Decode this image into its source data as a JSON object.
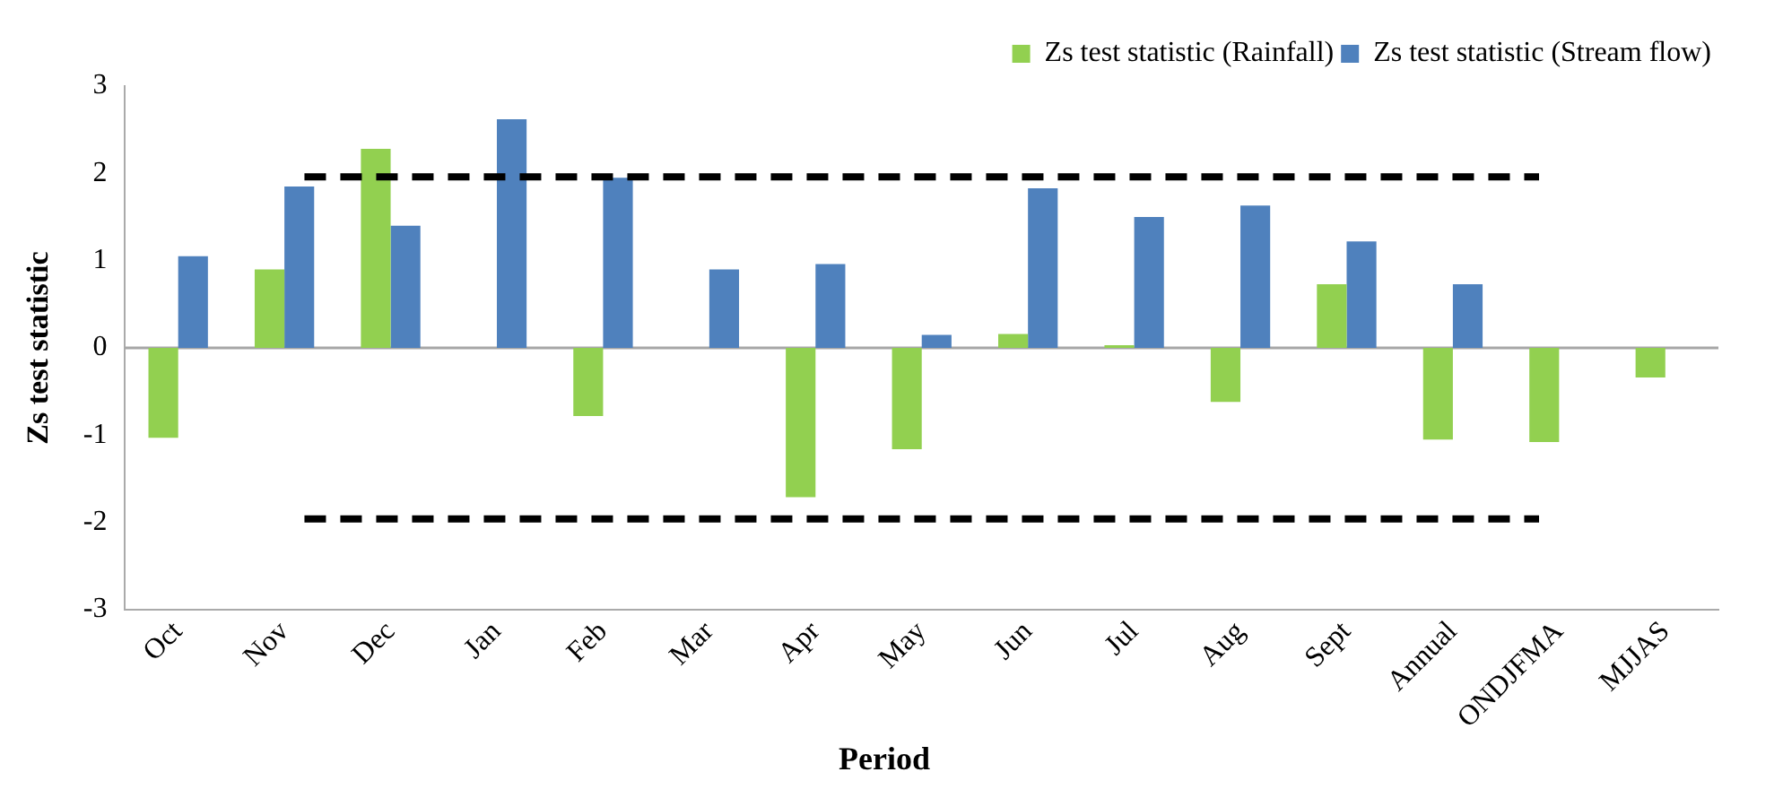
{
  "chart_data": {
    "type": "bar",
    "xlabel": "Period",
    "ylabel": "Zs test statistic",
    "categories": [
      "Oct",
      "Nov",
      "Dec",
      "Jan",
      "Feb",
      "Mar",
      "Apr",
      "May",
      "Jun",
      "Jul",
      "Aug",
      "Sept",
      "Annual",
      "ONDJFMA",
      "MJJAS"
    ],
    "series": [
      {
        "name": "Zs test statistic (Rainfall)",
        "color": "#92d050",
        "values": [
          -1.03,
          0.9,
          2.28,
          0,
          -0.78,
          0,
          -1.71,
          -1.16,
          0.16,
          0.03,
          -0.62,
          0.73,
          -1.05,
          -1.08,
          -0.34
        ]
      },
      {
        "name": "Zs test statistic (Stream flow)",
        "color": "#4f81bd",
        "values": [
          1.05,
          1.85,
          1.4,
          2.62,
          1.95,
          0.9,
          0.96,
          0.15,
          1.83,
          1.5,
          1.63,
          1.22,
          0.73,
          null,
          null
        ]
      }
    ],
    "ylim": [
      -3,
      3
    ],
    "yticks": [
      -3,
      -2,
      -1,
      0,
      1,
      2,
      3
    ],
    "ref_lines": [
      {
        "axis": "y",
        "value": 0,
        "color": "#a6a6a6",
        "line_style": "solid"
      },
      {
        "axis": "y",
        "value": 1.96,
        "color": "#000000",
        "line_style": "dashed"
      },
      {
        "axis": "y",
        "value": -1.96,
        "color": "#000000",
        "line_style": "dashed"
      }
    ],
    "legend": "top right",
    "grid": false
  }
}
